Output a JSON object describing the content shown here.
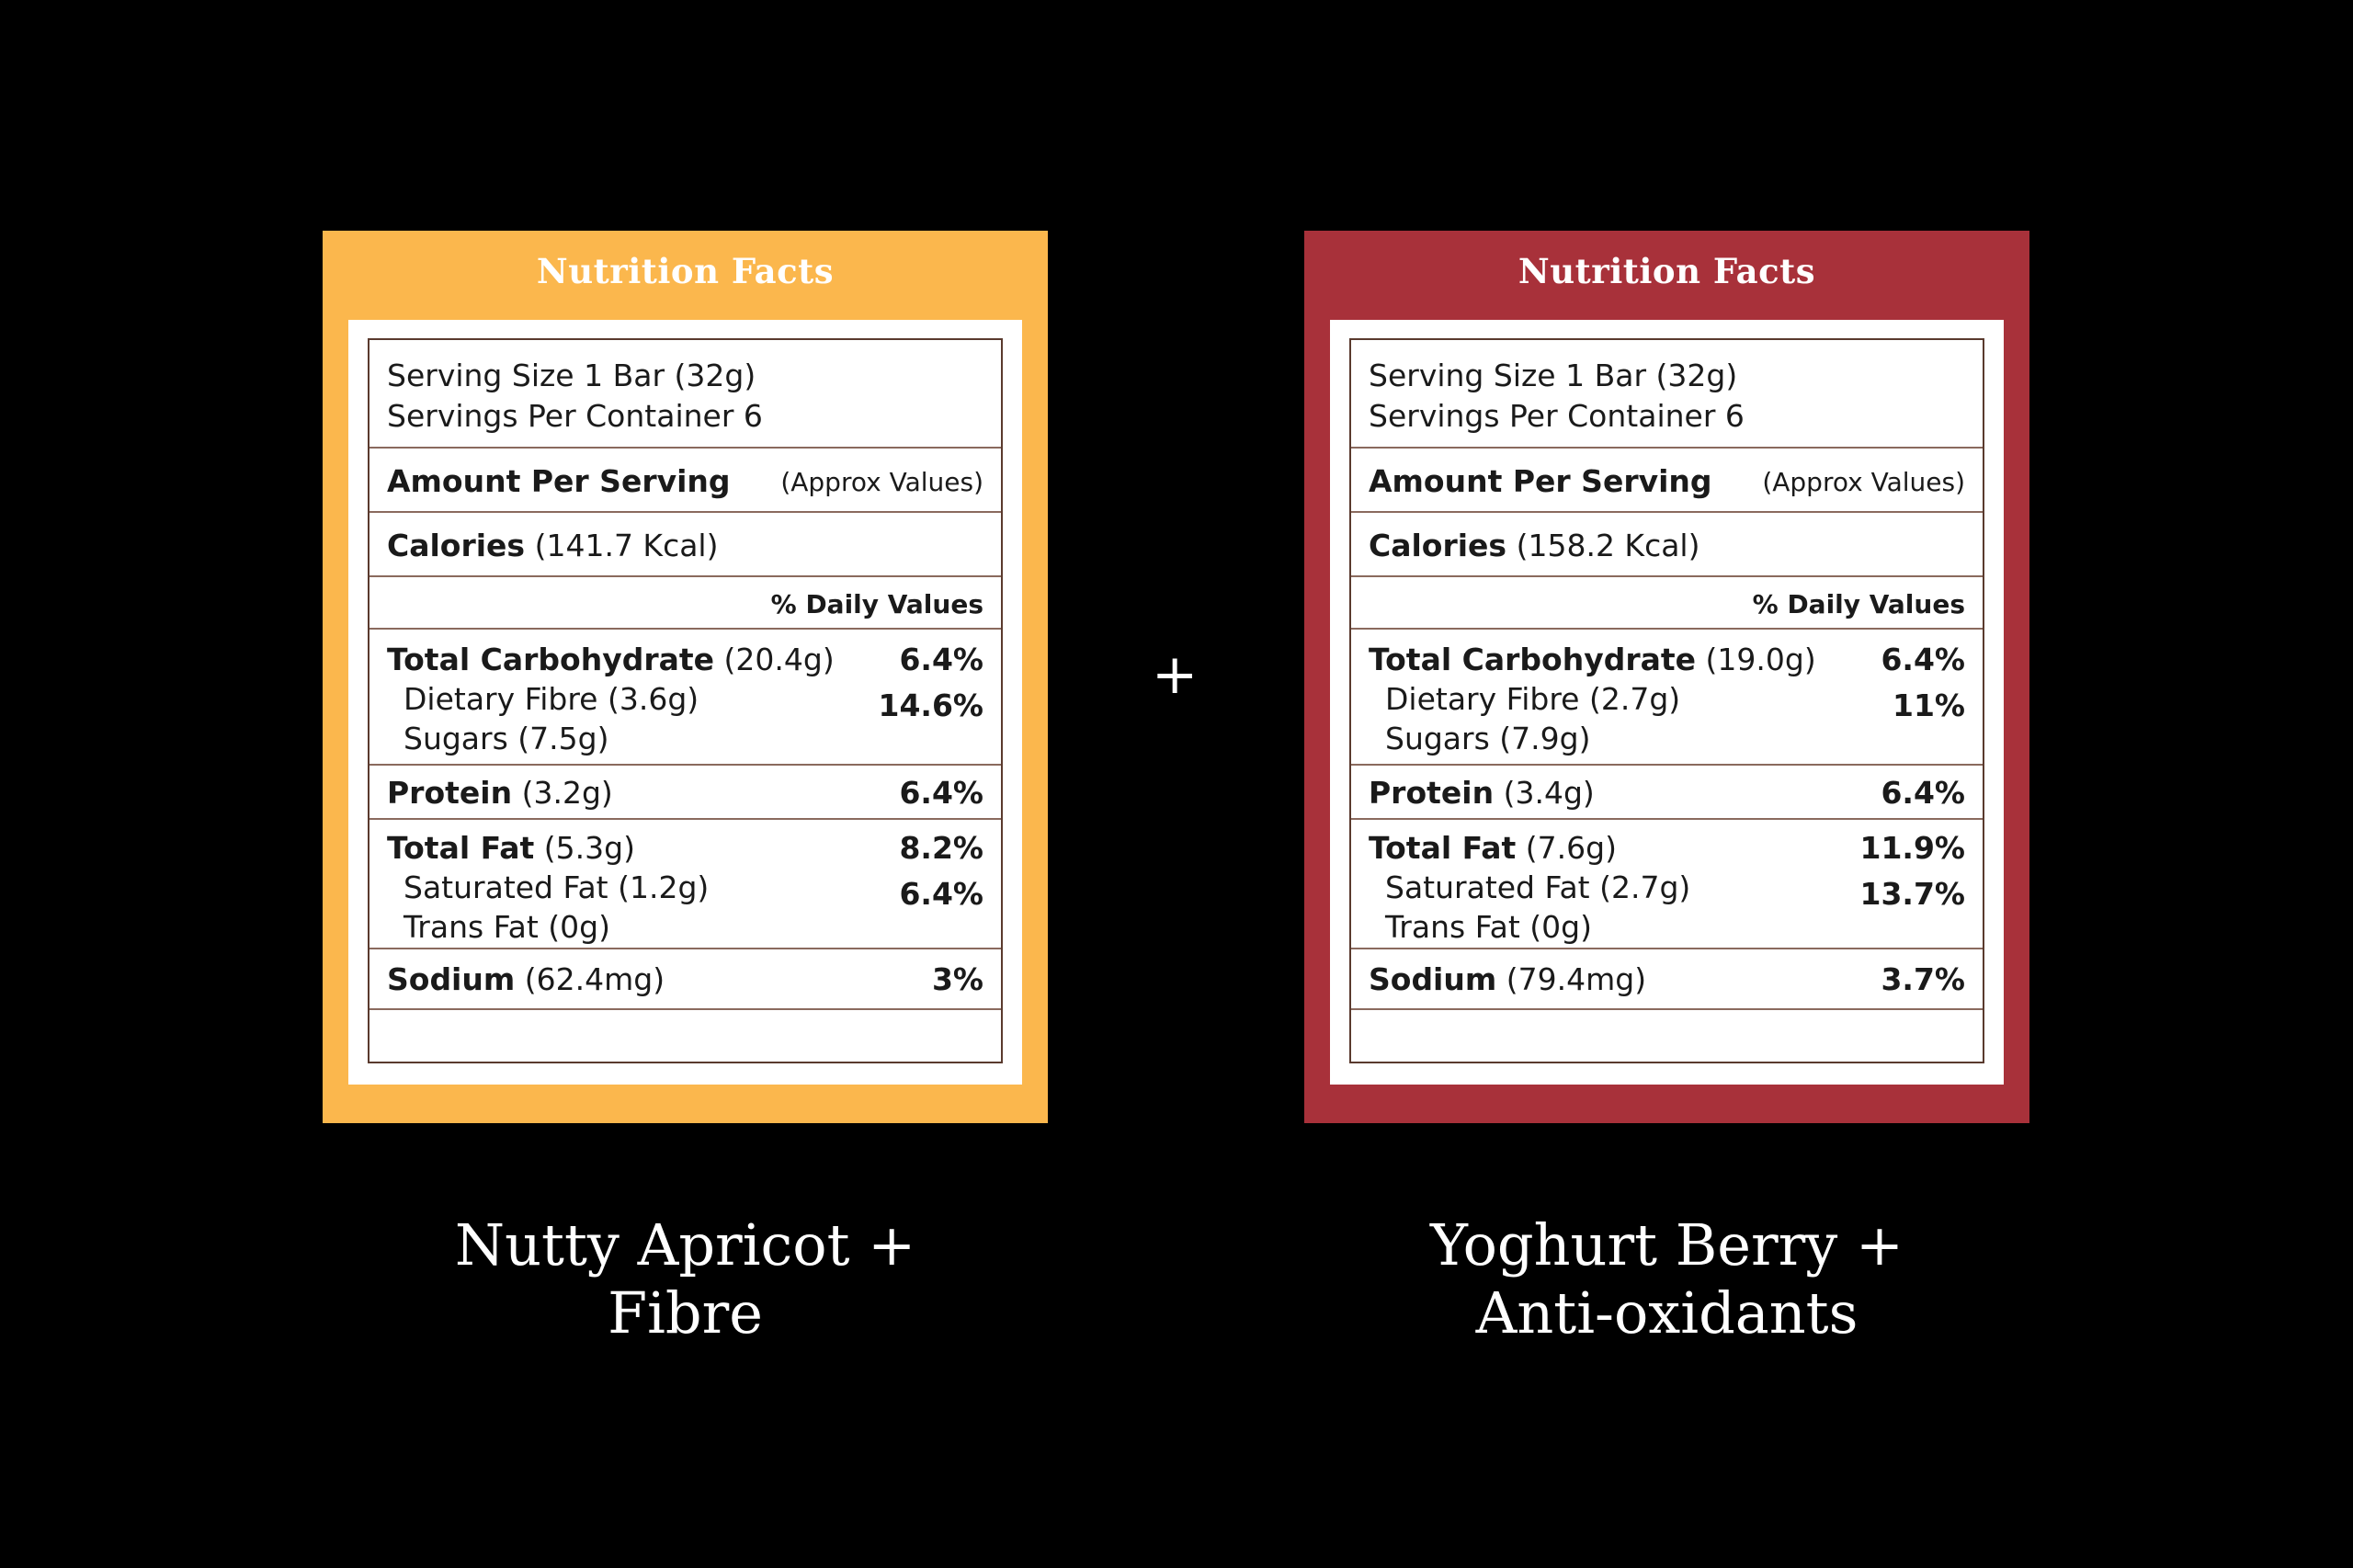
{
  "colors": {
    "background": "#000000",
    "left_card": "#fbb74d",
    "right_card": "#a8313a",
    "label_border": "#5a3a2e"
  },
  "plus_symbol": "+",
  "left": {
    "title": "Nutrition Facts",
    "serving_size": "Serving Size 1 Bar (32g)",
    "servings_per_container": "Servings Per Container 6",
    "amount_per_serving": "Amount Per Serving",
    "approx_values": "(Approx Values)",
    "calories_label": "Calories",
    "calories_value": "(141.7 Kcal)",
    "daily_values_header": "% Daily Values",
    "carb_label": "Total Carbohydrate",
    "carb_amount": "(20.4g)",
    "carb_dv": "6.4%",
    "fibre": "Dietary Fibre (3.6g)",
    "fibre_dv": "14.6%",
    "sugars": "Sugars (7.5g)",
    "protein_label": "Protein",
    "protein_amount": "(3.2g)",
    "protein_dv": "6.4%",
    "fat_label": "Total Fat",
    "fat_amount": "(5.3g)",
    "fat_dv": "8.2%",
    "sat_fat": "Saturated Fat (1.2g)",
    "sat_fat_dv": "6.4%",
    "trans_fat": "Trans Fat (0g)",
    "sodium_label": "Sodium",
    "sodium_amount": "(62.4mg)",
    "sodium_dv": "3%",
    "caption_line1": "Nutty Apricot +",
    "caption_line2": "Fibre"
  },
  "right": {
    "title": "Nutrition Facts",
    "serving_size": "Serving Size 1 Bar (32g)",
    "servings_per_container": "Servings Per Container 6",
    "amount_per_serving": "Amount Per Serving",
    "approx_values": "(Approx Values)",
    "calories_label": "Calories",
    "calories_value": "(158.2 Kcal)",
    "daily_values_header": "% Daily Values",
    "carb_label": "Total Carbohydrate",
    "carb_amount": "(19.0g)",
    "carb_dv": "6.4%",
    "fibre": "Dietary Fibre (2.7g)",
    "fibre_dv": "11%",
    "sugars": "Sugars (7.9g)",
    "protein_label": "Protein",
    "protein_amount": "(3.4g)",
    "protein_dv": "6.4%",
    "fat_label": "Total Fat",
    "fat_amount": "(7.6g)",
    "fat_dv": "11.9%",
    "sat_fat": "Saturated Fat (2.7g)",
    "sat_fat_dv": "13.7%",
    "trans_fat": "Trans Fat (0g)",
    "sodium_label": "Sodium",
    "sodium_amount": "(79.4mg)",
    "sodium_dv": "3.7%",
    "caption_line1": "Yoghurt Berry +",
    "caption_line2": "Anti-oxidants"
  }
}
